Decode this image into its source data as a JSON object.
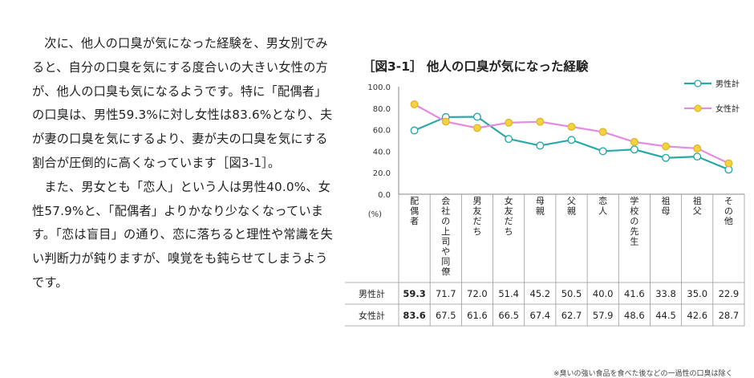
{
  "article": {
    "paragraphs": [
      "次に、他人の口臭が気になった経験を、男女別でみると、自分の口臭を気にする度合いの大きい女性の方が、他人の口臭も気になるようです。特に「配偶者」の口臭は、男性59.3%に対し女性は83.6%となり、夫が妻の口臭を気にするより、妻が夫の口臭を気にする割合が圧倒的に高くなっています［図3-1］。",
      "また、男女とも「恋人」という人は男性40.0%、女性57.9%と、「配偶者」よりかなり少なくなっています。「恋は盲目」の通り、恋に落ちると理性や常識を失い判断力が鈍りますが、嗅覚をも鈍らせてしまうようです。"
    ]
  },
  "chart_data": {
    "type": "line",
    "title": "［図3-1］ 他人の口臭が気になった経験",
    "ylabel": "(%)",
    "ylim": [
      0,
      100
    ],
    "yticks": [
      "100.0",
      "80.0",
      "60.0",
      "40.0",
      "20.0",
      "0.0"
    ],
    "categories": [
      "配偶者",
      "会社の上司や同僚",
      "男友だち",
      "女友だち",
      "母親",
      "父親",
      "恋人",
      "学校の先生",
      "祖母",
      "祖父",
      "その他"
    ],
    "series": [
      {
        "name": "男性計",
        "color": "#2aa9a9",
        "values": [
          59.3,
          71.7,
          72.0,
          51.4,
          45.2,
          50.5,
          40.0,
          41.6,
          33.8,
          35.0,
          22.9
        ],
        "labels": [
          "59.3",
          "71.7",
          "72.0",
          "51.4",
          "45.2",
          "50.5",
          "40.0",
          "41.6",
          "33.8",
          "35.0",
          "22.9"
        ]
      },
      {
        "name": "女性計",
        "color": "#e58be0",
        "marker_color": "#f5d23f",
        "values": [
          83.6,
          67.5,
          61.6,
          66.5,
          67.4,
          62.7,
          57.9,
          48.6,
          44.5,
          42.6,
          28.7
        ],
        "labels": [
          "83.6",
          "67.5",
          "61.6",
          "66.5",
          "67.4",
          "62.7",
          "57.9",
          "48.6",
          "44.5",
          "42.6",
          "28.7"
        ]
      }
    ],
    "legend_placement": "top-right",
    "grid": false
  },
  "footnote": "※臭いの強い食品を食べた後などの一過性の口臭は除く"
}
